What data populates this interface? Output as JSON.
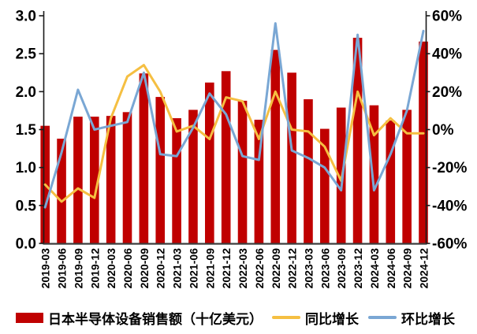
{
  "chart_data": {
    "type": "bar+line",
    "title": "",
    "categories": [
      "2019-03",
      "2019-06",
      "2019-09",
      "2019-12",
      "2020-03",
      "2020-06",
      "2020-09",
      "2020-12",
      "2021-03",
      "2021-06",
      "2021-09",
      "2021-12",
      "2022-03",
      "2022-06",
      "2022-09",
      "2022-12",
      "2023-03",
      "2023-06",
      "2023-09",
      "2023-12",
      "2024-03",
      "2024-06",
      "2024-09",
      "2024-12"
    ],
    "series": [
      {
        "name": "日本半导体设备销售额（十亿美元）",
        "type": "bar",
        "axis": "left",
        "color": "#C00000",
        "values": [
          1.55,
          1.38,
          1.67,
          1.67,
          1.68,
          1.73,
          2.24,
          1.93,
          1.65,
          1.76,
          2.12,
          2.27,
          1.88,
          1.63,
          2.55,
          2.25,
          1.9,
          1.51,
          1.79,
          2.71,
          1.82,
          1.62,
          1.76,
          2.66
        ]
      },
      {
        "name": "同比增长",
        "type": "line",
        "axis": "right",
        "color": "#F5BF42",
        "values_pct": [
          -29,
          -38,
          -31,
          -36,
          6,
          28,
          34,
          20,
          -1,
          2,
          -5,
          17,
          15,
          -5,
          20,
          0,
          -1,
          -9,
          -27,
          20,
          -3,
          6,
          -2,
          -2
        ]
      },
      {
        "name": "环比增长",
        "type": "line",
        "axis": "right",
        "color": "#7AA7D4",
        "values_pct": [
          -41,
          -12,
          21,
          0,
          2,
          4,
          30,
          -13,
          -14,
          1,
          19,
          8,
          -14,
          -16,
          56,
          -11,
          -15,
          -20,
          -32,
          50,
          -32,
          -13,
          10,
          52
        ]
      }
    ],
    "left_axis": {
      "min": 0.0,
      "max": 3.0,
      "step": 0.5,
      "tick_labels": [
        "3.0",
        "2.5",
        "2.0",
        "1.5",
        "1.0",
        "0.5",
        "0.0"
      ]
    },
    "right_axis": {
      "min": -60,
      "max": 60,
      "step": 20,
      "tick_labels": [
        "60%",
        "40%",
        "20%",
        "0%",
        "-20%",
        "-40%",
        "-60%"
      ]
    },
    "grid": false,
    "legend_position": "bottom"
  },
  "colors": {
    "bar": "#C00000",
    "yoy_line": "#F5BF42",
    "qoq_line": "#7AA7D4",
    "axis": "#1a1a1a",
    "text": "#000000"
  }
}
